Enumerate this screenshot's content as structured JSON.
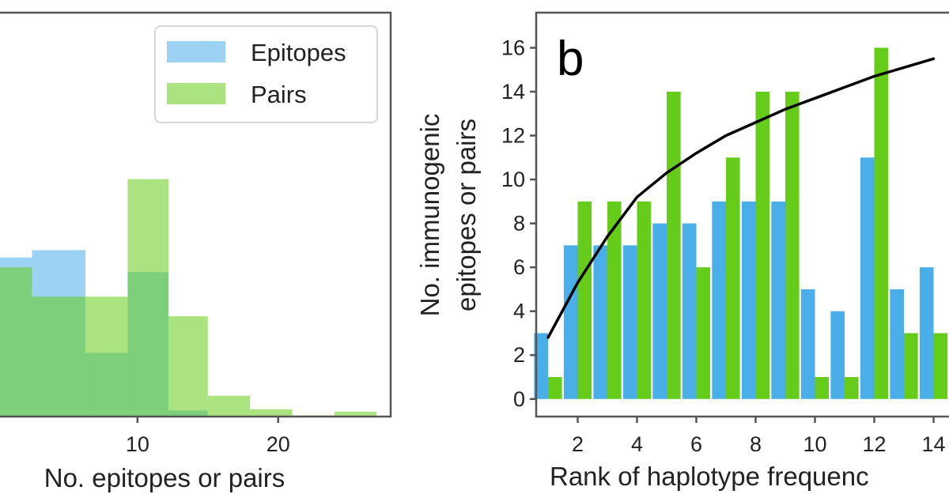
{
  "colors": {
    "epitopes": "#4aaee8",
    "pairs": "#66cc1a",
    "curve": "#000000"
  },
  "chart_data": [
    {
      "type": "bar",
      "subtype": "histogram-overlay",
      "xlabel": "No. epitopes or pairs",
      "xticks": [
        10,
        20
      ],
      "xlim": [
        0,
        28
      ],
      "ylim": [
        0,
        0.33
      ],
      "legend": {
        "placement": "top-right",
        "entries": [
          "Epitopes",
          "Pairs"
        ]
      },
      "series": [
        {
          "name": "Epitopes",
          "color_key": "epitopes",
          "opacity": 0.55,
          "bins": [
            [
              0,
              2.5
            ],
            [
              2.5,
              6.3
            ],
            [
              6.3,
              9.3
            ],
            [
              9.3,
              12.2
            ],
            [
              12.2,
              15.0
            ]
          ],
          "values": [
            0.13,
            0.136,
            0.052,
            0.118,
            0.005
          ]
        },
        {
          "name": "Pairs",
          "color_key": "pairs",
          "opacity": 0.55,
          "bins": [
            [
              0,
              2.5
            ],
            [
              2.5,
              6.3
            ],
            [
              6.3,
              9.3
            ],
            [
              9.3,
              12.2
            ],
            [
              12.2,
              15.0
            ],
            [
              15.0,
              18.0
            ],
            [
              18.0,
              21.0
            ],
            [
              21.0,
              24.0
            ],
            [
              24.0,
              27.0
            ]
          ],
          "values": [
            0.122,
            0.098,
            0.098,
            0.194,
            0.082,
            0.017,
            0.006,
            0.001,
            0.004
          ]
        }
      ]
    },
    {
      "type": "bar",
      "panel_label": "b",
      "ylabel": [
        "No. immunogenic",
        "epitopes or pairs"
      ],
      "xlabel": "Rank of haplotype frequenc",
      "yticks": [
        0,
        2,
        4,
        6,
        8,
        10,
        12,
        14,
        16
      ],
      "xticks": [
        2,
        4,
        6,
        8,
        10,
        12,
        14
      ],
      "xtick_labels": [
        "2",
        "4",
        "6",
        "8",
        "10",
        "12",
        "14"
      ],
      "ylim": [
        -0.8,
        17.6
      ],
      "xlim": [
        0.6,
        15.0
      ],
      "categories": [
        1,
        2,
        3,
        4,
        5,
        6,
        7,
        8,
        9,
        10,
        11,
        12,
        13,
        14
      ],
      "series": [
        {
          "name": "Epitopes",
          "color_key": "epitopes",
          "values": [
            3,
            7,
            7,
            7,
            8,
            8,
            9,
            9,
            9,
            5,
            4,
            11,
            5,
            6
          ]
        },
        {
          "name": "Pairs",
          "color_key": "pairs",
          "values": [
            1,
            9,
            9,
            9,
            14,
            6,
            11,
            14,
            14,
            1,
            1,
            16,
            3,
            3
          ]
        }
      ],
      "line": {
        "color_key": "curve",
        "x": [
          1,
          2,
          3,
          4,
          5,
          6,
          7,
          8,
          9,
          10,
          11,
          12,
          13,
          14
        ],
        "y": [
          2.8,
          5.3,
          7.4,
          9.2,
          10.3,
          11.2,
          12.0,
          12.6,
          13.2,
          13.7,
          14.2,
          14.7,
          15.1,
          15.5
        ]
      }
    }
  ]
}
